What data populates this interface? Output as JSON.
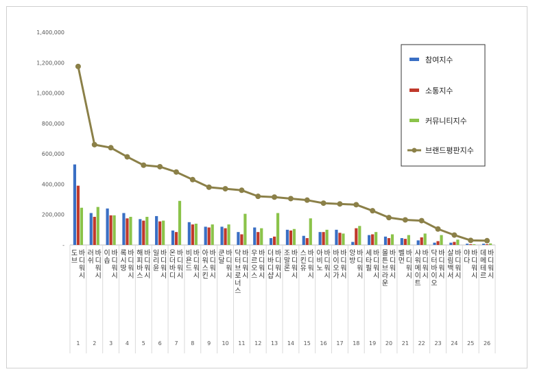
{
  "chart_data": {
    "type": "bar",
    "title": "",
    "xlabel": "",
    "ylabel": "",
    "ylim": [
      0,
      1400000
    ],
    "yticks": [
      0,
      200000,
      400000,
      600000,
      800000,
      1000000,
      1200000,
      1400000
    ],
    "ytick_labels": [
      "-",
      "200,000",
      "400,000",
      "600,000",
      "800,000",
      "1,000,000",
      "1,200,000",
      "1,400,000"
    ],
    "grid": false,
    "legend_position": "right",
    "numbers": [
      "1",
      "2",
      "3",
      "4",
      "5",
      "6",
      "7",
      "8",
      "9",
      "10",
      "11",
      "12",
      "13",
      "14",
      "15",
      "16",
      "17",
      "18",
      "19",
      "20",
      "21",
      "22",
      "23",
      "24",
      "25",
      "26"
    ],
    "categories": [
      "도브 바디워시",
      "러쉬 바디워시",
      "이솝 바디워시",
      "록시땅 바디워시",
      "해피바스 바디워시",
      "일리윤 바디워시",
      "온더바디 바디워시",
      "비욘드 바디워시",
      "아워스킨 바디워시",
      "쿤달 바디워시",
      "닥터브로너스 바디워시",
      "우르오스 바디워시",
      "더바디샵 바디워시",
      "조말론 바디워시",
      "스킨유 바디워시",
      "아비노 바디워시",
      "바이오가 바디워시",
      "앙방 바디워시",
      "세타필 바디워시",
      "몰튼브라운 바디워시",
      "벨먼 바디워시",
      "샤워메이트 바디워시",
      "닥터바이오 바디워시",
      "살림백서 바디워시",
      "야다 바디워시",
      "데메테르 바디워시"
    ],
    "series": [
      {
        "name": "참여지수",
        "type": "bar",
        "color": "#3a6fc4",
        "values": [
          530000,
          210000,
          240000,
          210000,
          170000,
          190000,
          95000,
          150000,
          120000,
          120000,
          85000,
          115000,
          45000,
          100000,
          60000,
          85000,
          100000,
          20000,
          65000,
          55000,
          45000,
          30000,
          15000,
          15000,
          8000,
          8000
        ]
      },
      {
        "name": "소통지수",
        "type": "bar",
        "color": "#c0392b",
        "values": [
          390000,
          185000,
          195000,
          175000,
          160000,
          155000,
          85000,
          135000,
          115000,
          110000,
          70000,
          85000,
          55000,
          95000,
          45000,
          85000,
          80000,
          110000,
          70000,
          45000,
          40000,
          50000,
          25000,
          20000,
          5000,
          5000
        ]
      },
      {
        "name": "커뮤니티지수",
        "type": "bar",
        "color": "#8bc34a",
        "values": [
          245000,
          250000,
          195000,
          185000,
          185000,
          160000,
          290000,
          140000,
          135000,
          135000,
          205000,
          110000,
          210000,
          105000,
          175000,
          100000,
          75000,
          125000,
          85000,
          70000,
          65000,
          75000,
          65000,
          35000,
          5000,
          10000
        ]
      },
      {
        "name": "브랜드평판지수",
        "type": "line",
        "color": "#8b8048",
        "values": [
          1175000,
          660000,
          640000,
          580000,
          525000,
          515000,
          480000,
          430000,
          380000,
          370000,
          360000,
          320000,
          315000,
          305000,
          295000,
          275000,
          270000,
          265000,
          225000,
          180000,
          165000,
          160000,
          105000,
          65000,
          30000,
          28000
        ]
      }
    ]
  }
}
